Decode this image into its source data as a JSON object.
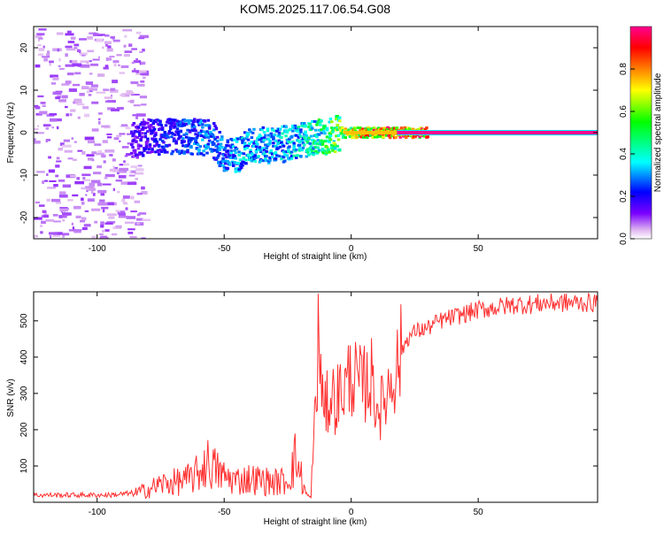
{
  "title": "KOM5.2025.117.06.54.G08",
  "chart_data": [
    {
      "type": "heatmap",
      "xlabel": "Height of straight line (km)",
      "ylabel": "Frequency (Hz)",
      "xlim": [
        -125,
        97
      ],
      "ylim": [
        -25,
        25
      ],
      "xticks": [
        -100,
        -50,
        0,
        50
      ],
      "yticks": [
        -20,
        -10,
        0,
        10,
        20
      ],
      "grid": false,
      "colorbar": {
        "label": "Normalized spectral amplitude",
        "range": [
          0,
          1
        ],
        "ticks": [
          0.0,
          0.2,
          0.4,
          0.6,
          0.8
        ],
        "tick_labels": [
          "0.0",
          "0.2",
          "0.4",
          "0.6",
          "0.8"
        ],
        "colors": [
          "#ffffff",
          "#e0b8f0",
          "#7a00ff",
          "#0000ff",
          "#00ffff",
          "#00ff00",
          "#ffff00",
          "#ff8000",
          "#ff0000",
          "#ff0090"
        ]
      },
      "signal_track": {
        "x": [
          -87,
          -80,
          -70,
          -60,
          -55,
          -50,
          -45,
          -40,
          -30,
          -20,
          -15,
          -10,
          -5,
          0,
          5,
          10,
          15,
          20,
          30,
          50,
          97
        ],
        "y": [
          -2,
          -1,
          -1,
          -1,
          -1.5,
          -6,
          -5,
          -3,
          -3,
          -2,
          -1,
          -1,
          0,
          0,
          0,
          0,
          0,
          0,
          0,
          0,
          0
        ],
        "amplitude": [
          0.15,
          0.2,
          0.25,
          0.3,
          0.3,
          0.3,
          0.35,
          0.35,
          0.35,
          0.4,
          0.45,
          0.55,
          0.65,
          0.75,
          0.8,
          0.85,
          0.9,
          0.95,
          0.97,
          0.98,
          1.0
        ]
      }
    },
    {
      "type": "line",
      "xlabel": "Height of straight line (km)",
      "ylabel": "SNR (v/v)",
      "xlim": [
        -125,
        97
      ],
      "ylim": [
        0,
        580
      ],
      "xticks": [
        -100,
        -50,
        0,
        50
      ],
      "yticks": [
        100,
        200,
        300,
        400,
        500
      ],
      "grid": false,
      "series": [
        {
          "color": "#ff3030",
          "x": [
            -125,
            -110,
            -95,
            -85,
            -80,
            -75,
            -70,
            -65,
            -60,
            -57,
            -55,
            -50,
            -45,
            -40,
            -35,
            -30,
            -25,
            -22,
            -20,
            -18,
            -16,
            -14,
            -13,
            -12,
            -11,
            -10,
            -8,
            -6,
            -4,
            -2,
            0,
            2,
            4,
            6,
            8,
            10,
            12,
            14,
            16,
            18,
            20,
            22,
            25,
            30,
            35,
            40,
            45,
            50,
            55,
            60,
            65,
            70,
            75,
            80,
            85,
            90,
            97
          ],
          "y": [
            20,
            20,
            20,
            25,
            35,
            50,
            55,
            60,
            80,
            110,
            100,
            70,
            60,
            65,
            60,
            55,
            60,
            120,
            80,
            25,
            10,
            220,
            450,
            320,
            200,
            260,
            300,
            280,
            310,
            320,
            360,
            330,
            320,
            330,
            340,
            270,
            260,
            300,
            350,
            370,
            420,
            450,
            470,
            480,
            500,
            510,
            520,
            530,
            535,
            540,
            545,
            545,
            548,
            550,
            550,
            550,
            550
          ]
        }
      ]
    }
  ]
}
